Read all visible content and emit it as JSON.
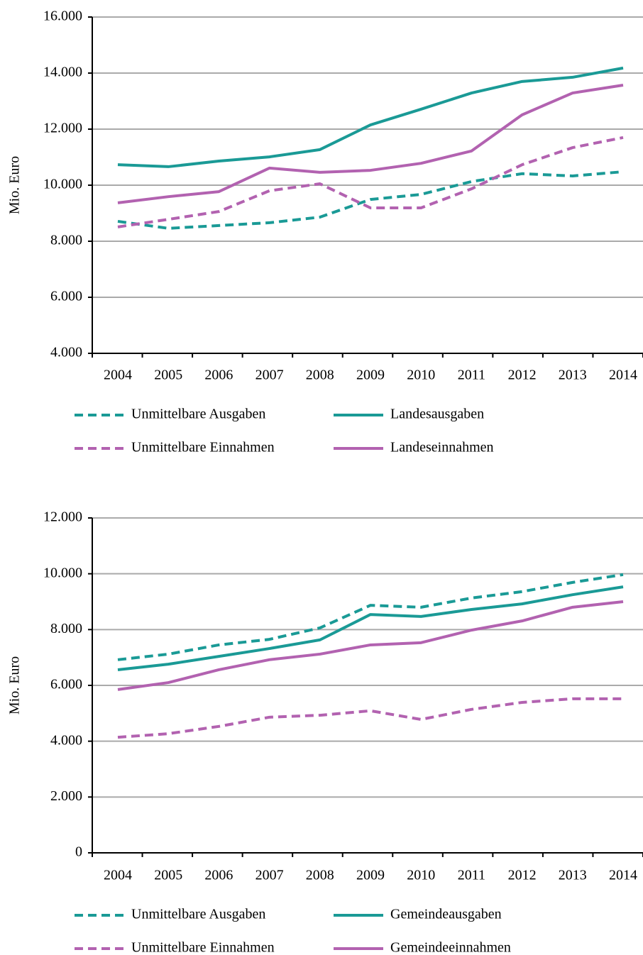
{
  "chart_data": [
    {
      "type": "line",
      "y_label": "Mio. Euro",
      "categories": [
        "2004",
        "2005",
        "2006",
        "2007",
        "2008",
        "2009",
        "2010",
        "2011",
        "2012",
        "2013",
        "2014"
      ],
      "ylim": [
        4000,
        16000
      ],
      "yticks": [
        {
          "value": 4000,
          "label": "4.000"
        },
        {
          "value": 6000,
          "label": "6.000"
        },
        {
          "value": 8000,
          "label": "8.000"
        },
        {
          "value": 10000,
          "label": "10.000"
        },
        {
          "value": 12000,
          "label": "12.000"
        },
        {
          "value": 14000,
          "label": "14.000"
        },
        {
          "value": 16000,
          "label": "16.000"
        }
      ],
      "grid": true,
      "series": [
        {
          "name": "Unmittelbare Ausgaben",
          "color": "#1a9a96",
          "dashed": true,
          "values": [
            8710,
            8460,
            8560,
            8660,
            8860,
            9490,
            9670,
            10130,
            10410,
            10330,
            10480
          ]
        },
        {
          "name": "Landesausgaben",
          "color": "#1a9a96",
          "dashed": false,
          "values": [
            10730,
            10660,
            10860,
            11010,
            11270,
            12150,
            12710,
            13290,
            13700,
            13850,
            14180
          ]
        },
        {
          "name": "Unmittelbare Einnahmen",
          "color": "#b262b0",
          "dashed": true,
          "values": [
            8510,
            8780,
            9060,
            9800,
            10050,
            9190,
            9190,
            9870,
            10730,
            11340,
            11700
          ]
        },
        {
          "name": "Landeseinnahmen",
          "color": "#b262b0",
          "dashed": false,
          "values": [
            9370,
            9590,
            9770,
            10610,
            10460,
            10530,
            10780,
            11220,
            12510,
            13290,
            13570
          ]
        }
      ]
    },
    {
      "type": "line",
      "y_label": "Mio. Euro",
      "categories": [
        "2004",
        "2005",
        "2006",
        "2007",
        "2008",
        "2009",
        "2010",
        "2011",
        "2012",
        "2013",
        "2014"
      ],
      "ylim": [
        0,
        12000
      ],
      "yticks": [
        0,
        {
          "value": 2000,
          "label": "2.000"
        },
        {
          "value": 4000,
          "label": "4.000"
        },
        {
          "value": 6000,
          "label": "6.000"
        },
        {
          "value": 8000,
          "label": "8.000"
        },
        {
          "value": 10000,
          "label": "10.000"
        },
        {
          "value": 12000,
          "label": "12.000"
        }
      ],
      "grid": true,
      "series": [
        {
          "name": "Unmittelbare Ausgaben",
          "color": "#1a9a96",
          "dashed": true,
          "values": [
            6920,
            7120,
            7450,
            7650,
            8060,
            8870,
            8800,
            9130,
            9360,
            9690,
            9970
          ]
        },
        {
          "name": "Gemeindeausgaben",
          "color": "#1a9a96",
          "dashed": false,
          "values": [
            6560,
            6760,
            7040,
            7320,
            7630,
            8540,
            8470,
            8720,
            8920,
            9250,
            9530
          ]
        },
        {
          "name": "Unmittelbare Einnahmen",
          "color": "#b262b0",
          "dashed": true,
          "values": [
            4140,
            4270,
            4530,
            4860,
            4930,
            5090,
            4780,
            5140,
            5390,
            5520,
            5520
          ]
        },
        {
          "name": "Gemeindeeinnahmen",
          "color": "#b262b0",
          "dashed": false,
          "values": [
            5850,
            6100,
            6560,
            6920,
            7120,
            7450,
            7530,
            7980,
            8310,
            8800,
            9000
          ]
        }
      ]
    }
  ]
}
